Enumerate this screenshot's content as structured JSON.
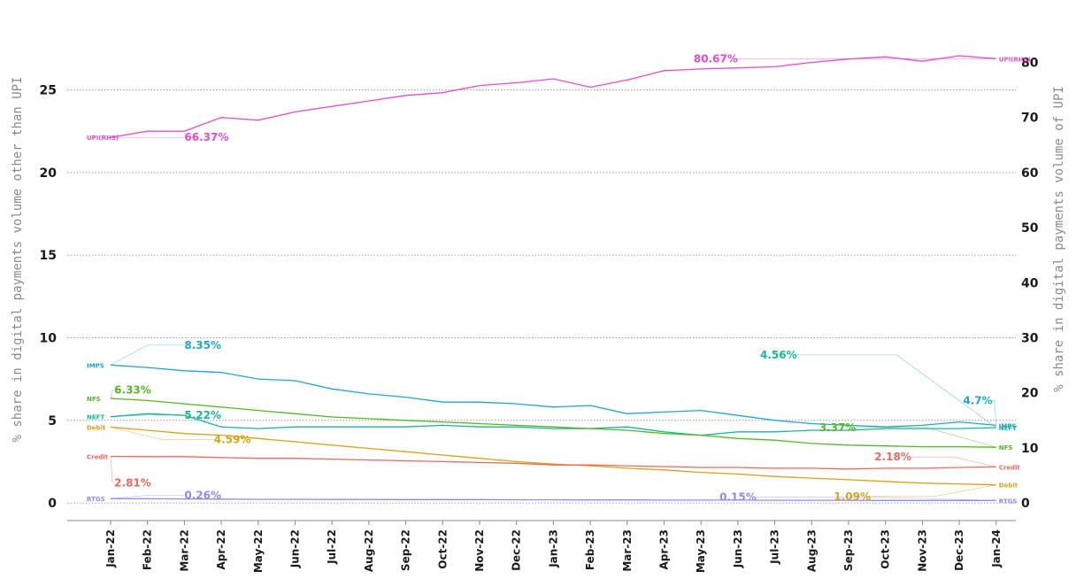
{
  "chart_data": {
    "type": "line",
    "left_axis": {
      "label": "% share in digital payments volume other than UPI",
      "ticks": [
        0,
        5,
        10,
        15,
        20,
        25
      ],
      "range": [
        -0.8,
        29.8
      ]
    },
    "right_axis": {
      "label": "% share in digital payments volume of UPI",
      "ticks": [
        0,
        10,
        20,
        30,
        40,
        50,
        60,
        70,
        80
      ],
      "range": [
        -2.4,
        89.4
      ]
    },
    "categories": [
      "Jan-22",
      "Feb-22",
      "Mar-22",
      "Apr-22",
      "May-22",
      "Jun-22",
      "Jul-22",
      "Aug-22",
      "Sep-22",
      "Oct-22",
      "Nov-22",
      "Dec-22",
      "Jan-23",
      "Feb-23",
      "Mar-23",
      "Apr-23",
      "May-23",
      "Jun-23",
      "Jul-23",
      "Aug-23",
      "Sep-23",
      "Oct-23",
      "Nov-23",
      "Dec-23",
      "Jan-24"
    ],
    "grid": "horizontal-dotted",
    "series": [
      {
        "name": "UPI(RHS)",
        "axis": "right",
        "color": "#e64bd0",
        "values": [
          66.37,
          67.5,
          67.5,
          70.0,
          69.5,
          71.0,
          72.0,
          73.0,
          74.0,
          74.5,
          75.8,
          76.3,
          77.0,
          75.5,
          76.8,
          78.5,
          78.8,
          79.0,
          79.2,
          80.0,
          80.6,
          81.0,
          80.2,
          81.2,
          80.67
        ],
        "tag": "UPI(RHS)",
        "callouts": [
          {
            "text": "66.37%",
            "index": 0,
            "dx": 2,
            "dy": 0
          },
          {
            "text": "80.67%",
            "index": 24,
            "dx": -7,
            "dy": 0
          }
        ]
      },
      {
        "name": "IMPS",
        "axis": "left",
        "color": "#1aa9d6",
        "values": [
          8.35,
          8.2,
          8.0,
          7.9,
          7.5,
          7.4,
          6.9,
          6.6,
          6.4,
          6.1,
          6.1,
          6.0,
          5.8,
          5.9,
          5.4,
          5.5,
          5.6,
          5.3,
          5.0,
          4.8,
          4.7,
          4.6,
          4.7,
          4.9,
          4.7
        ],
        "tag": "IMPS",
        "callouts": [
          {
            "text": "8.35%",
            "index": 0,
            "dx": 2,
            "dy": 1.2
          },
          {
            "text": "4.7%",
            "index": 24,
            "dx": -0.1,
            "dy": 1.5
          }
        ]
      },
      {
        "name": "NEFT",
        "axis": "left",
        "color": "#16b89a",
        "values": [
          5.22,
          5.4,
          5.3,
          4.6,
          4.5,
          4.6,
          4.6,
          4.6,
          4.6,
          4.7,
          4.6,
          4.6,
          4.5,
          4.5,
          4.6,
          4.3,
          4.1,
          4.3,
          4.3,
          4.4,
          4.4,
          4.5,
          4.5,
          4.5,
          4.56
        ],
        "tag": "NEFT",
        "callouts": [
          {
            "text": "5.22%",
            "index": 0,
            "dx": 2,
            "dy": 0.1
          },
          {
            "text": "4.56%",
            "index": 24,
            "dx": -5.4,
            "dy": 4.4
          }
        ]
      },
      {
        "name": "NFS",
        "axis": "left",
        "color": "#54b820",
        "values": [
          6.33,
          6.2,
          6.0,
          5.8,
          5.6,
          5.4,
          5.2,
          5.1,
          5.0,
          4.9,
          4.8,
          4.7,
          4.6,
          4.5,
          4.4,
          4.2,
          4.1,
          3.9,
          3.8,
          3.6,
          3.5,
          3.45,
          3.4,
          3.4,
          3.37
        ],
        "tag": "NFS",
        "callouts": [
          {
            "text": "6.33%",
            "index": 0,
            "dx": 0.1,
            "dy": 0.5
          },
          {
            "text": "3.37%",
            "index": 24,
            "dx": -3.8,
            "dy": 1.2
          }
        ]
      },
      {
        "name": "Debit",
        "axis": "left",
        "color": "#d6a412",
        "values": [
          4.59,
          4.4,
          4.2,
          4.1,
          3.9,
          3.7,
          3.5,
          3.3,
          3.1,
          2.9,
          2.7,
          2.5,
          2.35,
          2.25,
          2.1,
          2.0,
          1.85,
          1.75,
          1.6,
          1.5,
          1.4,
          1.3,
          1.2,
          1.15,
          1.09
        ],
        "tag": "Debit",
        "callouts": [
          {
            "text": "4.59%",
            "index": 0,
            "dx": 2.8,
            "dy": -0.75
          },
          {
            "text": "1.09%",
            "index": 24,
            "dx": -3.4,
            "dy": -0.7
          }
        ]
      },
      {
        "name": "Credit",
        "axis": "left",
        "color": "#ea6a5e",
        "values": [
          2.81,
          2.8,
          2.8,
          2.75,
          2.7,
          2.7,
          2.65,
          2.6,
          2.55,
          2.5,
          2.45,
          2.4,
          2.3,
          2.3,
          2.25,
          2.2,
          2.15,
          2.15,
          2.1,
          2.1,
          2.05,
          2.1,
          2.1,
          2.15,
          2.18
        ],
        "tag": "Credit",
        "callouts": [
          {
            "text": "2.81%",
            "index": 0,
            "dx": 0.1,
            "dy": -1.6
          },
          {
            "text": "2.18%",
            "index": 24,
            "dx": -2.3,
            "dy": 0.6
          }
        ]
      },
      {
        "name": "RTGS",
        "axis": "left",
        "color": "#8f8af0",
        "values": [
          0.26,
          0.25,
          0.24,
          0.23,
          0.22,
          0.22,
          0.21,
          0.21,
          0.2,
          0.2,
          0.2,
          0.19,
          0.19,
          0.18,
          0.18,
          0.17,
          0.17,
          0.17,
          0.16,
          0.16,
          0.16,
          0.15,
          0.15,
          0.15,
          0.15
        ],
        "tag": "RTGS",
        "callouts": [
          {
            "text": "0.26%",
            "index": 0,
            "dx": 2,
            "dy": 0.2
          },
          {
            "text": "0.15%",
            "index": 24,
            "dx": -6.5,
            "dy": 0.2
          }
        ]
      }
    ]
  }
}
